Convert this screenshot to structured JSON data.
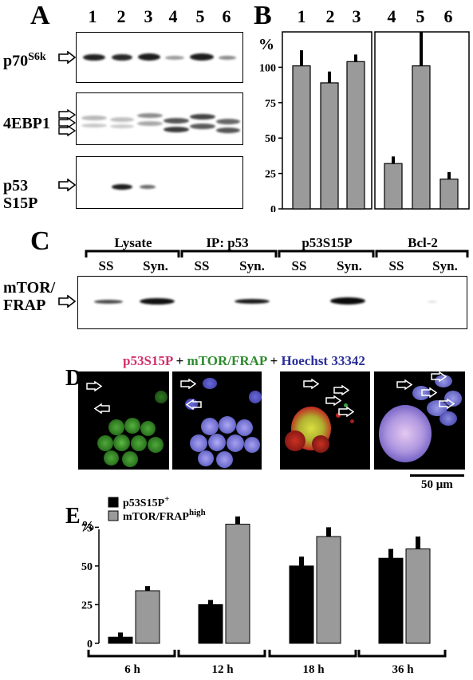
{
  "panels": {
    "A": {
      "letter": "A",
      "lanes": [
        "1",
        "2",
        "3",
        "4",
        "5",
        "6"
      ],
      "rows": [
        {
          "label_main": "p70",
          "label_sup": "S6k"
        },
        {
          "label_main": "4EBP1",
          "label_sup": ""
        },
        {
          "label_main": "p53",
          "label_line2": "S15P"
        }
      ]
    },
    "B": {
      "letter": "B",
      "lanes": [
        "1",
        "2",
        "3",
        "4",
        "5",
        "6"
      ]
    },
    "C": {
      "letter": "C",
      "groups": [
        "Lysate",
        "IP: p53",
        "p53S15P",
        "Bcl-2"
      ],
      "sublabels": [
        "SS",
        "Syn.",
        "SS",
        "Syn.",
        "SS",
        "Syn.",
        "SS",
        "Syn."
      ],
      "row_label_line1": "mTOR/",
      "row_label_line2": "FRAP"
    },
    "D": {
      "letter": "D",
      "title_red": "p53S15P",
      "title_plus1": " + ",
      "title_green": "mTOR/FRAP",
      "title_plus2": " + ",
      "title_blue": "Hoechst 33342",
      "scale_bar": "50 μm"
    },
    "E": {
      "letter": "E",
      "legend": [
        {
          "main": "p53S15P",
          "sup": "+",
          "color": "#000000"
        },
        {
          "main": "mTOR/FRAP",
          "sup": "high",
          "color": "#9a9a9a"
        }
      ]
    }
  },
  "colors": {
    "bar_gray": "#9a9a9a",
    "bar_black": "#000000",
    "red_text": "#d0306b",
    "green_text": "#2d8a2d",
    "blue_text": "#2a2f9a"
  },
  "chart_data": [
    {
      "type": "bar",
      "panel": "B",
      "ylabel": "%",
      "ylim": [
        0,
        125
      ],
      "yticks": [
        0,
        25,
        50,
        75,
        100
      ],
      "categories": [
        "1",
        "2",
        "3",
        "4",
        "5",
        "6"
      ],
      "values": [
        101,
        89,
        104,
        32,
        101,
        21
      ],
      "errors": [
        11,
        8,
        5,
        5,
        24,
        5
      ]
    },
    {
      "type": "bar",
      "panel": "E",
      "ylabel": "%",
      "ylim": [
        0,
        85
      ],
      "yticks": [
        0,
        25,
        50,
        75
      ],
      "categories": [
        "6 h",
        "12 h",
        "18 h",
        "36 h"
      ],
      "series": [
        {
          "name": "p53S15P+",
          "values": [
            4,
            25,
            50,
            55
          ],
          "errors": [
            3,
            3,
            6,
            6
          ]
        },
        {
          "name": "mTOR/FRAPhigh",
          "values": [
            34,
            77,
            69,
            61
          ],
          "errors": [
            3,
            5,
            6,
            8
          ]
        }
      ]
    }
  ]
}
